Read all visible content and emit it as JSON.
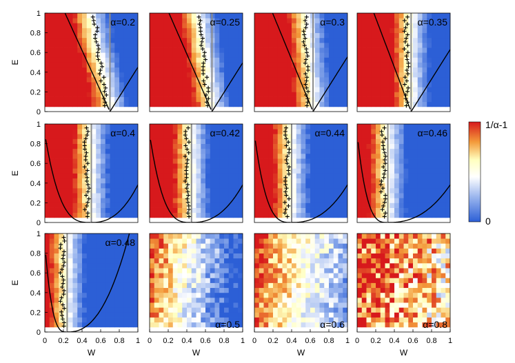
{
  "chart_data": {
    "type": "heatmap",
    "grid": {
      "rows": 3,
      "cols": 4
    },
    "xlabel": "W",
    "ylabel": "E",
    "xlim": [
      0,
      1
    ],
    "ylim": [
      0,
      1
    ],
    "xticks": [
      "0",
      "0.2",
      "0.4",
      "0.6",
      "0.8",
      "1"
    ],
    "yticks": [
      "0",
      "0.2",
      "0.4",
      "0.6",
      "0.8",
      "1"
    ],
    "colorbar": {
      "top_label": "1/α-1",
      "bottom_label": "0"
    },
    "colors": {
      "hot": "#d7191c",
      "mid": "#ffffbf",
      "white": "#ffffff",
      "cold": "#2c5fd6"
    },
    "panels": [
      {
        "alpha": "α=0.2",
        "a": 0.2,
        "boundary_w": 0.7,
        "curve": true,
        "crosses": true,
        "label_pos": "top-right"
      },
      {
        "alpha": "α=0.25",
        "a": 0.25,
        "boundary_w": 0.67,
        "curve": true,
        "crosses": true,
        "label_pos": "top-right"
      },
      {
        "alpha": "α=0.3",
        "a": 0.3,
        "boundary_w": 0.63,
        "curve": true,
        "crosses": true,
        "label_pos": "top-right"
      },
      {
        "alpha": "α=0.35",
        "a": 0.35,
        "boundary_w": 0.58,
        "curve": true,
        "crosses": true,
        "label_pos": "top-right"
      },
      {
        "alpha": "α=0.4",
        "a": 0.4,
        "boundary_w": 0.5,
        "curve": true,
        "crosses": true,
        "label_pos": "top-right"
      },
      {
        "alpha": "α=0.42",
        "a": 0.42,
        "boundary_w": 0.45,
        "curve": true,
        "crosses": true,
        "label_pos": "top-right"
      },
      {
        "alpha": "α=0.44",
        "a": 0.44,
        "boundary_w": 0.4,
        "curve": true,
        "crosses": true,
        "label_pos": "top-right"
      },
      {
        "alpha": "α=0.46",
        "a": 0.46,
        "boundary_w": 0.33,
        "curve": true,
        "crosses": true,
        "label_pos": "top-right"
      },
      {
        "alpha": "α=0.48",
        "a": 0.48,
        "boundary_w": 0.24,
        "curve": true,
        "crosses": true,
        "label_pos": "top-right"
      },
      {
        "alpha": "α=0.5",
        "a": 0.5,
        "boundary_w": null,
        "curve": false,
        "crosses": false,
        "label_pos": "bottom-right"
      },
      {
        "alpha": "α=0.6",
        "a": 0.6,
        "boundary_w": null,
        "curve": false,
        "crosses": false,
        "label_pos": "bottom-right"
      },
      {
        "alpha": "α=0.8",
        "a": 0.8,
        "boundary_w": null,
        "curve": false,
        "crosses": false,
        "label_pos": "bottom-right"
      }
    ]
  }
}
